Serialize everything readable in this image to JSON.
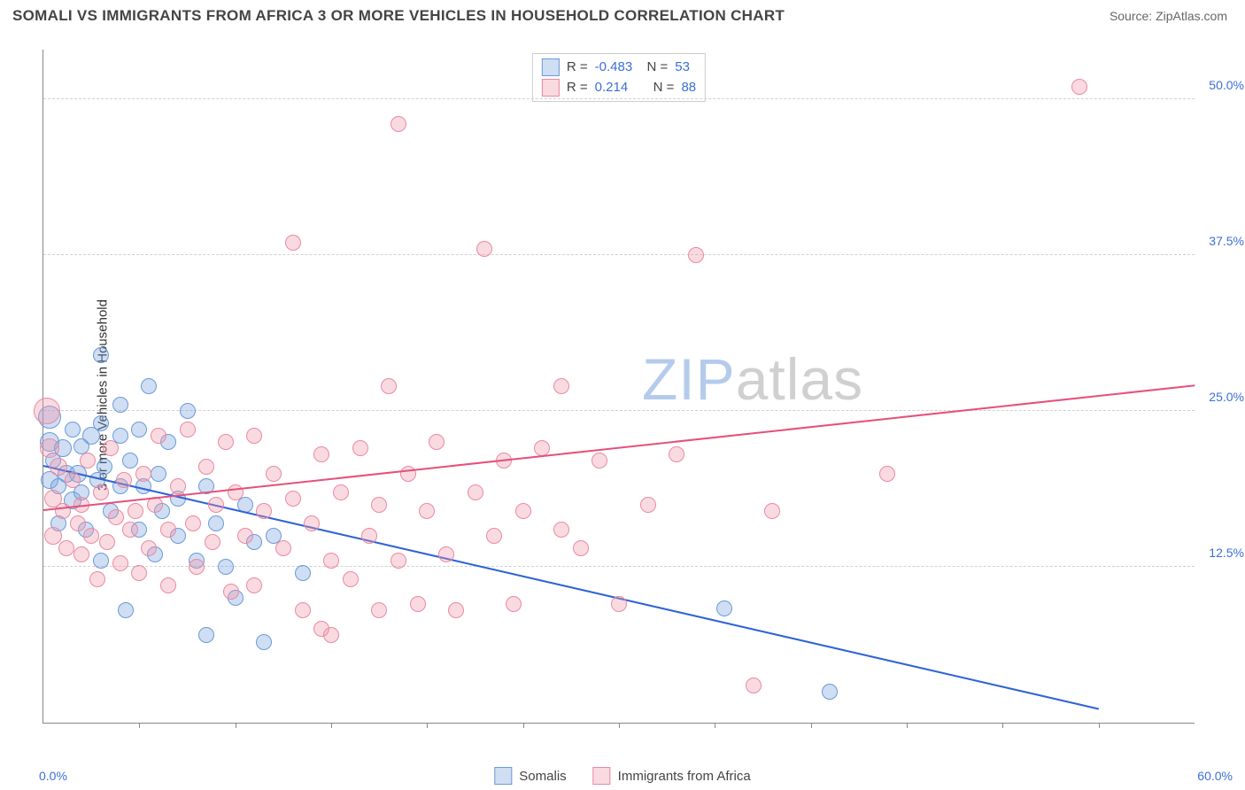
{
  "header": {
    "title": "SOMALI VS IMMIGRANTS FROM AFRICA 3 OR MORE VEHICLES IN HOUSEHOLD CORRELATION CHART",
    "source": "Source: ZipAtlas.com"
  },
  "chart": {
    "type": "scatter",
    "y_axis_title": "3 or more Vehicles in Household",
    "xlim": [
      0,
      60
    ],
    "ylim": [
      0,
      54
    ],
    "x_min_label": "0.0%",
    "x_max_label": "60.0%",
    "x_ticks": [
      5,
      10,
      15,
      20,
      25,
      30,
      35,
      40,
      45,
      50,
      55
    ],
    "y_gridlines": [
      {
        "value": 12.5,
        "label": "12.5%"
      },
      {
        "value": 25.0,
        "label": "25.0%"
      },
      {
        "value": 37.5,
        "label": "37.5%"
      },
      {
        "value": 50.0,
        "label": "50.0%"
      }
    ],
    "background_color": "#ffffff",
    "grid_color": "#d0d0d0",
    "axis_color": "#888888",
    "tick_label_color": "#3b6fd8",
    "axis_title_color": "#333333",
    "watermark": {
      "part1": "ZIP",
      "part2": "atlas"
    },
    "series": [
      {
        "name": "Somalis",
        "fill": "rgba(120,160,220,0.35)",
        "stroke": "#6a9ad8",
        "trend_color": "#2f63d6",
        "r_value": "-0.483",
        "n_value": "53",
        "trend": {
          "x1": 0,
          "y1": 20.5,
          "x2": 55,
          "y2": 1.0
        },
        "points": [
          {
            "x": 0.3,
            "y": 24.5,
            "r": 12
          },
          {
            "x": 0.3,
            "y": 22.5,
            "r": 10
          },
          {
            "x": 0.3,
            "y": 19.5,
            "r": 9
          },
          {
            "x": 0.5,
            "y": 21.0,
            "r": 8
          },
          {
            "x": 0.8,
            "y": 19.0,
            "r": 8
          },
          {
            "x": 0.8,
            "y": 16.0,
            "r": 8
          },
          {
            "x": 1.0,
            "y": 22.0,
            "r": 9
          },
          {
            "x": 1.2,
            "y": 20.0,
            "r": 9
          },
          {
            "x": 1.5,
            "y": 23.5,
            "r": 8
          },
          {
            "x": 1.5,
            "y": 17.8,
            "r": 9
          },
          {
            "x": 1.8,
            "y": 20.0,
            "r": 9
          },
          {
            "x": 2.0,
            "y": 22.2,
            "r": 8
          },
          {
            "x": 2.0,
            "y": 18.5,
            "r": 8
          },
          {
            "x": 2.2,
            "y": 15.5,
            "r": 8
          },
          {
            "x": 2.5,
            "y": 23.0,
            "r": 9
          },
          {
            "x": 2.8,
            "y": 19.5,
            "r": 8
          },
          {
            "x": 3.0,
            "y": 29.5,
            "r": 8
          },
          {
            "x": 3.0,
            "y": 24.0,
            "r": 8
          },
          {
            "x": 3.0,
            "y": 13.0,
            "r": 8
          },
          {
            "x": 3.2,
            "y": 20.5,
            "r": 8
          },
          {
            "x": 3.5,
            "y": 17.0,
            "r": 8
          },
          {
            "x": 4.0,
            "y": 25.5,
            "r": 8
          },
          {
            "x": 4.0,
            "y": 23.0,
            "r": 8
          },
          {
            "x": 4.0,
            "y": 19.0,
            "r": 8
          },
          {
            "x": 4.3,
            "y": 9.0,
            "r": 8
          },
          {
            "x": 4.5,
            "y": 21.0,
            "r": 8
          },
          {
            "x": 5.0,
            "y": 23.5,
            "r": 8
          },
          {
            "x": 5.0,
            "y": 15.5,
            "r": 8
          },
          {
            "x": 5.2,
            "y": 19.0,
            "r": 8
          },
          {
            "x": 5.5,
            "y": 27.0,
            "r": 8
          },
          {
            "x": 5.8,
            "y": 13.5,
            "r": 8
          },
          {
            "x": 6.0,
            "y": 20.0,
            "r": 8
          },
          {
            "x": 6.2,
            "y": 17.0,
            "r": 8
          },
          {
            "x": 6.5,
            "y": 22.5,
            "r": 8
          },
          {
            "x": 7.0,
            "y": 18.0,
            "r": 8
          },
          {
            "x": 7.0,
            "y": 15.0,
            "r": 8
          },
          {
            "x": 7.5,
            "y": 25.0,
            "r": 8
          },
          {
            "x": 8.0,
            "y": 13.0,
            "r": 8
          },
          {
            "x": 8.5,
            "y": 19.0,
            "r": 8
          },
          {
            "x": 8.5,
            "y": 7.0,
            "r": 8
          },
          {
            "x": 9.0,
            "y": 16.0,
            "r": 8
          },
          {
            "x": 9.5,
            "y": 12.5,
            "r": 8
          },
          {
            "x": 10.0,
            "y": 10.0,
            "r": 8
          },
          {
            "x": 10.5,
            "y": 17.5,
            "r": 8
          },
          {
            "x": 11.0,
            "y": 14.5,
            "r": 8
          },
          {
            "x": 11.5,
            "y": 6.5,
            "r": 8
          },
          {
            "x": 12.0,
            "y": 15.0,
            "r": 8
          },
          {
            "x": 13.5,
            "y": 12.0,
            "r": 8
          },
          {
            "x": 35.5,
            "y": 9.2,
            "r": 8
          },
          {
            "x": 41.0,
            "y": 2.5,
            "r": 8
          }
        ]
      },
      {
        "name": "Immigrants from Africa",
        "fill": "rgba(240,150,170,0.35)",
        "stroke": "#e88aa0",
        "trend_color": "#e6507a",
        "r_value": "0.214",
        "n_value": "88",
        "trend": {
          "x1": 0,
          "y1": 17.0,
          "x2": 60,
          "y2": 27.0
        },
        "points": [
          {
            "x": 0.2,
            "y": 25.0,
            "r": 14
          },
          {
            "x": 0.3,
            "y": 22.0,
            "r": 10
          },
          {
            "x": 0.5,
            "y": 18.0,
            "r": 9
          },
          {
            "x": 0.5,
            "y": 15.0,
            "r": 9
          },
          {
            "x": 0.8,
            "y": 20.5,
            "r": 9
          },
          {
            "x": 1.0,
            "y": 17.0,
            "r": 8
          },
          {
            "x": 1.2,
            "y": 14.0,
            "r": 8
          },
          {
            "x": 1.5,
            "y": 19.5,
            "r": 8
          },
          {
            "x": 1.8,
            "y": 16.0,
            "r": 8
          },
          {
            "x": 2.0,
            "y": 13.5,
            "r": 8
          },
          {
            "x": 2.0,
            "y": 17.5,
            "r": 8
          },
          {
            "x": 2.3,
            "y": 21.0,
            "r": 8
          },
          {
            "x": 2.5,
            "y": 15.0,
            "r": 8
          },
          {
            "x": 2.8,
            "y": 11.5,
            "r": 8
          },
          {
            "x": 3.0,
            "y": 18.5,
            "r": 8
          },
          {
            "x": 3.3,
            "y": 14.5,
            "r": 8
          },
          {
            "x": 3.5,
            "y": 22.0,
            "r": 8
          },
          {
            "x": 3.8,
            "y": 16.5,
            "r": 8
          },
          {
            "x": 4.0,
            "y": 12.8,
            "r": 8
          },
          {
            "x": 4.2,
            "y": 19.5,
            "r": 8
          },
          {
            "x": 4.5,
            "y": 15.5,
            "r": 8
          },
          {
            "x": 4.8,
            "y": 17.0,
            "r": 8
          },
          {
            "x": 5.0,
            "y": 12.0,
            "r": 8
          },
          {
            "x": 5.2,
            "y": 20.0,
            "r": 8
          },
          {
            "x": 5.5,
            "y": 14.0,
            "r": 8
          },
          {
            "x": 5.8,
            "y": 17.5,
            "r": 8
          },
          {
            "x": 6.0,
            "y": 23.0,
            "r": 8
          },
          {
            "x": 6.5,
            "y": 15.5,
            "r": 8
          },
          {
            "x": 6.5,
            "y": 11.0,
            "r": 8
          },
          {
            "x": 7.0,
            "y": 19.0,
            "r": 8
          },
          {
            "x": 7.5,
            "y": 23.5,
            "r": 8
          },
          {
            "x": 7.8,
            "y": 16.0,
            "r": 8
          },
          {
            "x": 8.0,
            "y": 12.5,
            "r": 8
          },
          {
            "x": 8.5,
            "y": 20.5,
            "r": 8
          },
          {
            "x": 8.8,
            "y": 14.5,
            "r": 8
          },
          {
            "x": 9.0,
            "y": 17.5,
            "r": 8
          },
          {
            "x": 9.5,
            "y": 22.5,
            "r": 8
          },
          {
            "x": 9.8,
            "y": 10.5,
            "r": 8
          },
          {
            "x": 10.0,
            "y": 18.5,
            "r": 8
          },
          {
            "x": 10.5,
            "y": 15.0,
            "r": 8
          },
          {
            "x": 11.0,
            "y": 23.0,
            "r": 8
          },
          {
            "x": 11.0,
            "y": 11.0,
            "r": 8
          },
          {
            "x": 11.5,
            "y": 17.0,
            "r": 8
          },
          {
            "x": 12.0,
            "y": 20.0,
            "r": 8
          },
          {
            "x": 12.5,
            "y": 14.0,
            "r": 8
          },
          {
            "x": 13.0,
            "y": 38.5,
            "r": 8
          },
          {
            "x": 13.0,
            "y": 18.0,
            "r": 8
          },
          {
            "x": 13.5,
            "y": 9.0,
            "r": 8
          },
          {
            "x": 14.0,
            "y": 16.0,
            "r": 8
          },
          {
            "x": 14.5,
            "y": 21.5,
            "r": 8
          },
          {
            "x": 14.5,
            "y": 7.5,
            "r": 8
          },
          {
            "x": 15.0,
            "y": 13.0,
            "r": 8
          },
          {
            "x": 15.0,
            "y": 7.0,
            "r": 8
          },
          {
            "x": 15.5,
            "y": 18.5,
            "r": 8
          },
          {
            "x": 16.0,
            "y": 11.5,
            "r": 8
          },
          {
            "x": 16.5,
            "y": 22.0,
            "r": 8
          },
          {
            "x": 17.0,
            "y": 15.0,
            "r": 8
          },
          {
            "x": 17.5,
            "y": 17.5,
            "r": 8
          },
          {
            "x": 17.5,
            "y": 9.0,
            "r": 8
          },
          {
            "x": 18.0,
            "y": 27.0,
            "r": 8
          },
          {
            "x": 18.5,
            "y": 48.0,
            "r": 8
          },
          {
            "x": 18.5,
            "y": 13.0,
            "r": 8
          },
          {
            "x": 19.0,
            "y": 20.0,
            "r": 8
          },
          {
            "x": 19.5,
            "y": 9.5,
            "r": 8
          },
          {
            "x": 20.0,
            "y": 17.0,
            "r": 8
          },
          {
            "x": 20.5,
            "y": 22.5,
            "r": 8
          },
          {
            "x": 21.0,
            "y": 13.5,
            "r": 8
          },
          {
            "x": 21.5,
            "y": 9.0,
            "r": 8
          },
          {
            "x": 22.5,
            "y": 18.5,
            "r": 8
          },
          {
            "x": 23.0,
            "y": 38.0,
            "r": 8
          },
          {
            "x": 23.5,
            "y": 15.0,
            "r": 8
          },
          {
            "x": 24.0,
            "y": 21.0,
            "r": 8
          },
          {
            "x": 24.5,
            "y": 9.5,
            "r": 8
          },
          {
            "x": 25.0,
            "y": 17.0,
            "r": 8
          },
          {
            "x": 26.0,
            "y": 22.0,
            "r": 8
          },
          {
            "x": 27.0,
            "y": 15.5,
            "r": 8
          },
          {
            "x": 27.0,
            "y": 27.0,
            "r": 8
          },
          {
            "x": 28.0,
            "y": 14.0,
            "r": 8
          },
          {
            "x": 29.0,
            "y": 21.0,
            "r": 8
          },
          {
            "x": 30.0,
            "y": 9.5,
            "r": 8
          },
          {
            "x": 31.5,
            "y": 17.5,
            "r": 8
          },
          {
            "x": 33.0,
            "y": 21.5,
            "r": 8
          },
          {
            "x": 34.0,
            "y": 37.5,
            "r": 8
          },
          {
            "x": 37.0,
            "y": 3.0,
            "r": 8
          },
          {
            "x": 38.0,
            "y": 17.0,
            "r": 8
          },
          {
            "x": 44.0,
            "y": 20.0,
            "r": 8
          },
          {
            "x": 54.0,
            "y": 51.0,
            "r": 8
          }
        ]
      }
    ]
  },
  "legend": {
    "series1": "Somalis",
    "series2": "Immigrants from Africa"
  }
}
